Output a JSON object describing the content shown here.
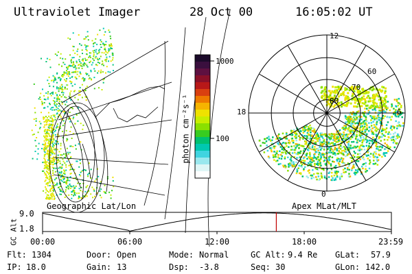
{
  "header": {
    "instrument": "Ultraviolet Imager",
    "date": "28 Oct 00",
    "time": "16:05:02 UT"
  },
  "colorbar": {
    "label": "photon cm⁻²s⁻¹",
    "ticks": [
      "1000",
      "100"
    ],
    "colors": [
      "#1b0a2a",
      "#3a0f3e",
      "#5e1040",
      "#8a1028",
      "#b81818",
      "#d94010",
      "#ee7a00",
      "#f6b400",
      "#efe200",
      "#c8ee00",
      "#8ae000",
      "#38cc20",
      "#00c070",
      "#00c8b0",
      "#40d4e0",
      "#9ae8ee",
      "#dff6f6",
      "#ffffff"
    ],
    "scale": "log"
  },
  "left_panel": {
    "caption": "Geographic Lat/Lon"
  },
  "right_panel": {
    "caption": "Apex MLat/MLT",
    "mlt_labels": {
      "top": "12",
      "left": "18",
      "right": "6",
      "bottom": "0"
    },
    "lat_labels": [
      "60",
      "70",
      "80"
    ]
  },
  "timeline": {
    "ylabel": "GC Alt",
    "yticks": [
      "9.0",
      "1.8"
    ],
    "xticks": [
      "00:00",
      "06:00",
      "12:00",
      "18:00",
      "23:59"
    ],
    "current_time_hours": 16.08,
    "marker_color": "#c00000"
  },
  "footer": {
    "flt_label": "Flt:",
    "flt_value": "1304",
    "ip_label": "IP:",
    "ip_value": "18.0",
    "door_label": "Door:",
    "door_value": "Open",
    "gain_label": "Gain:",
    "gain_value": "13",
    "mode_label": "Mode:",
    "mode_value": "Normal",
    "dsp_label": "Dsp:",
    "dsp_value": "-3.8",
    "gcalt_label": "GC Alt:",
    "gcalt_value": "9.4 Re",
    "seq_label": "Seq:",
    "seq_value": "30",
    "glat_label": "GLat:",
    "glat_value": "57.9",
    "glon_label": "GLon:",
    "glon_value": "142.0"
  }
}
